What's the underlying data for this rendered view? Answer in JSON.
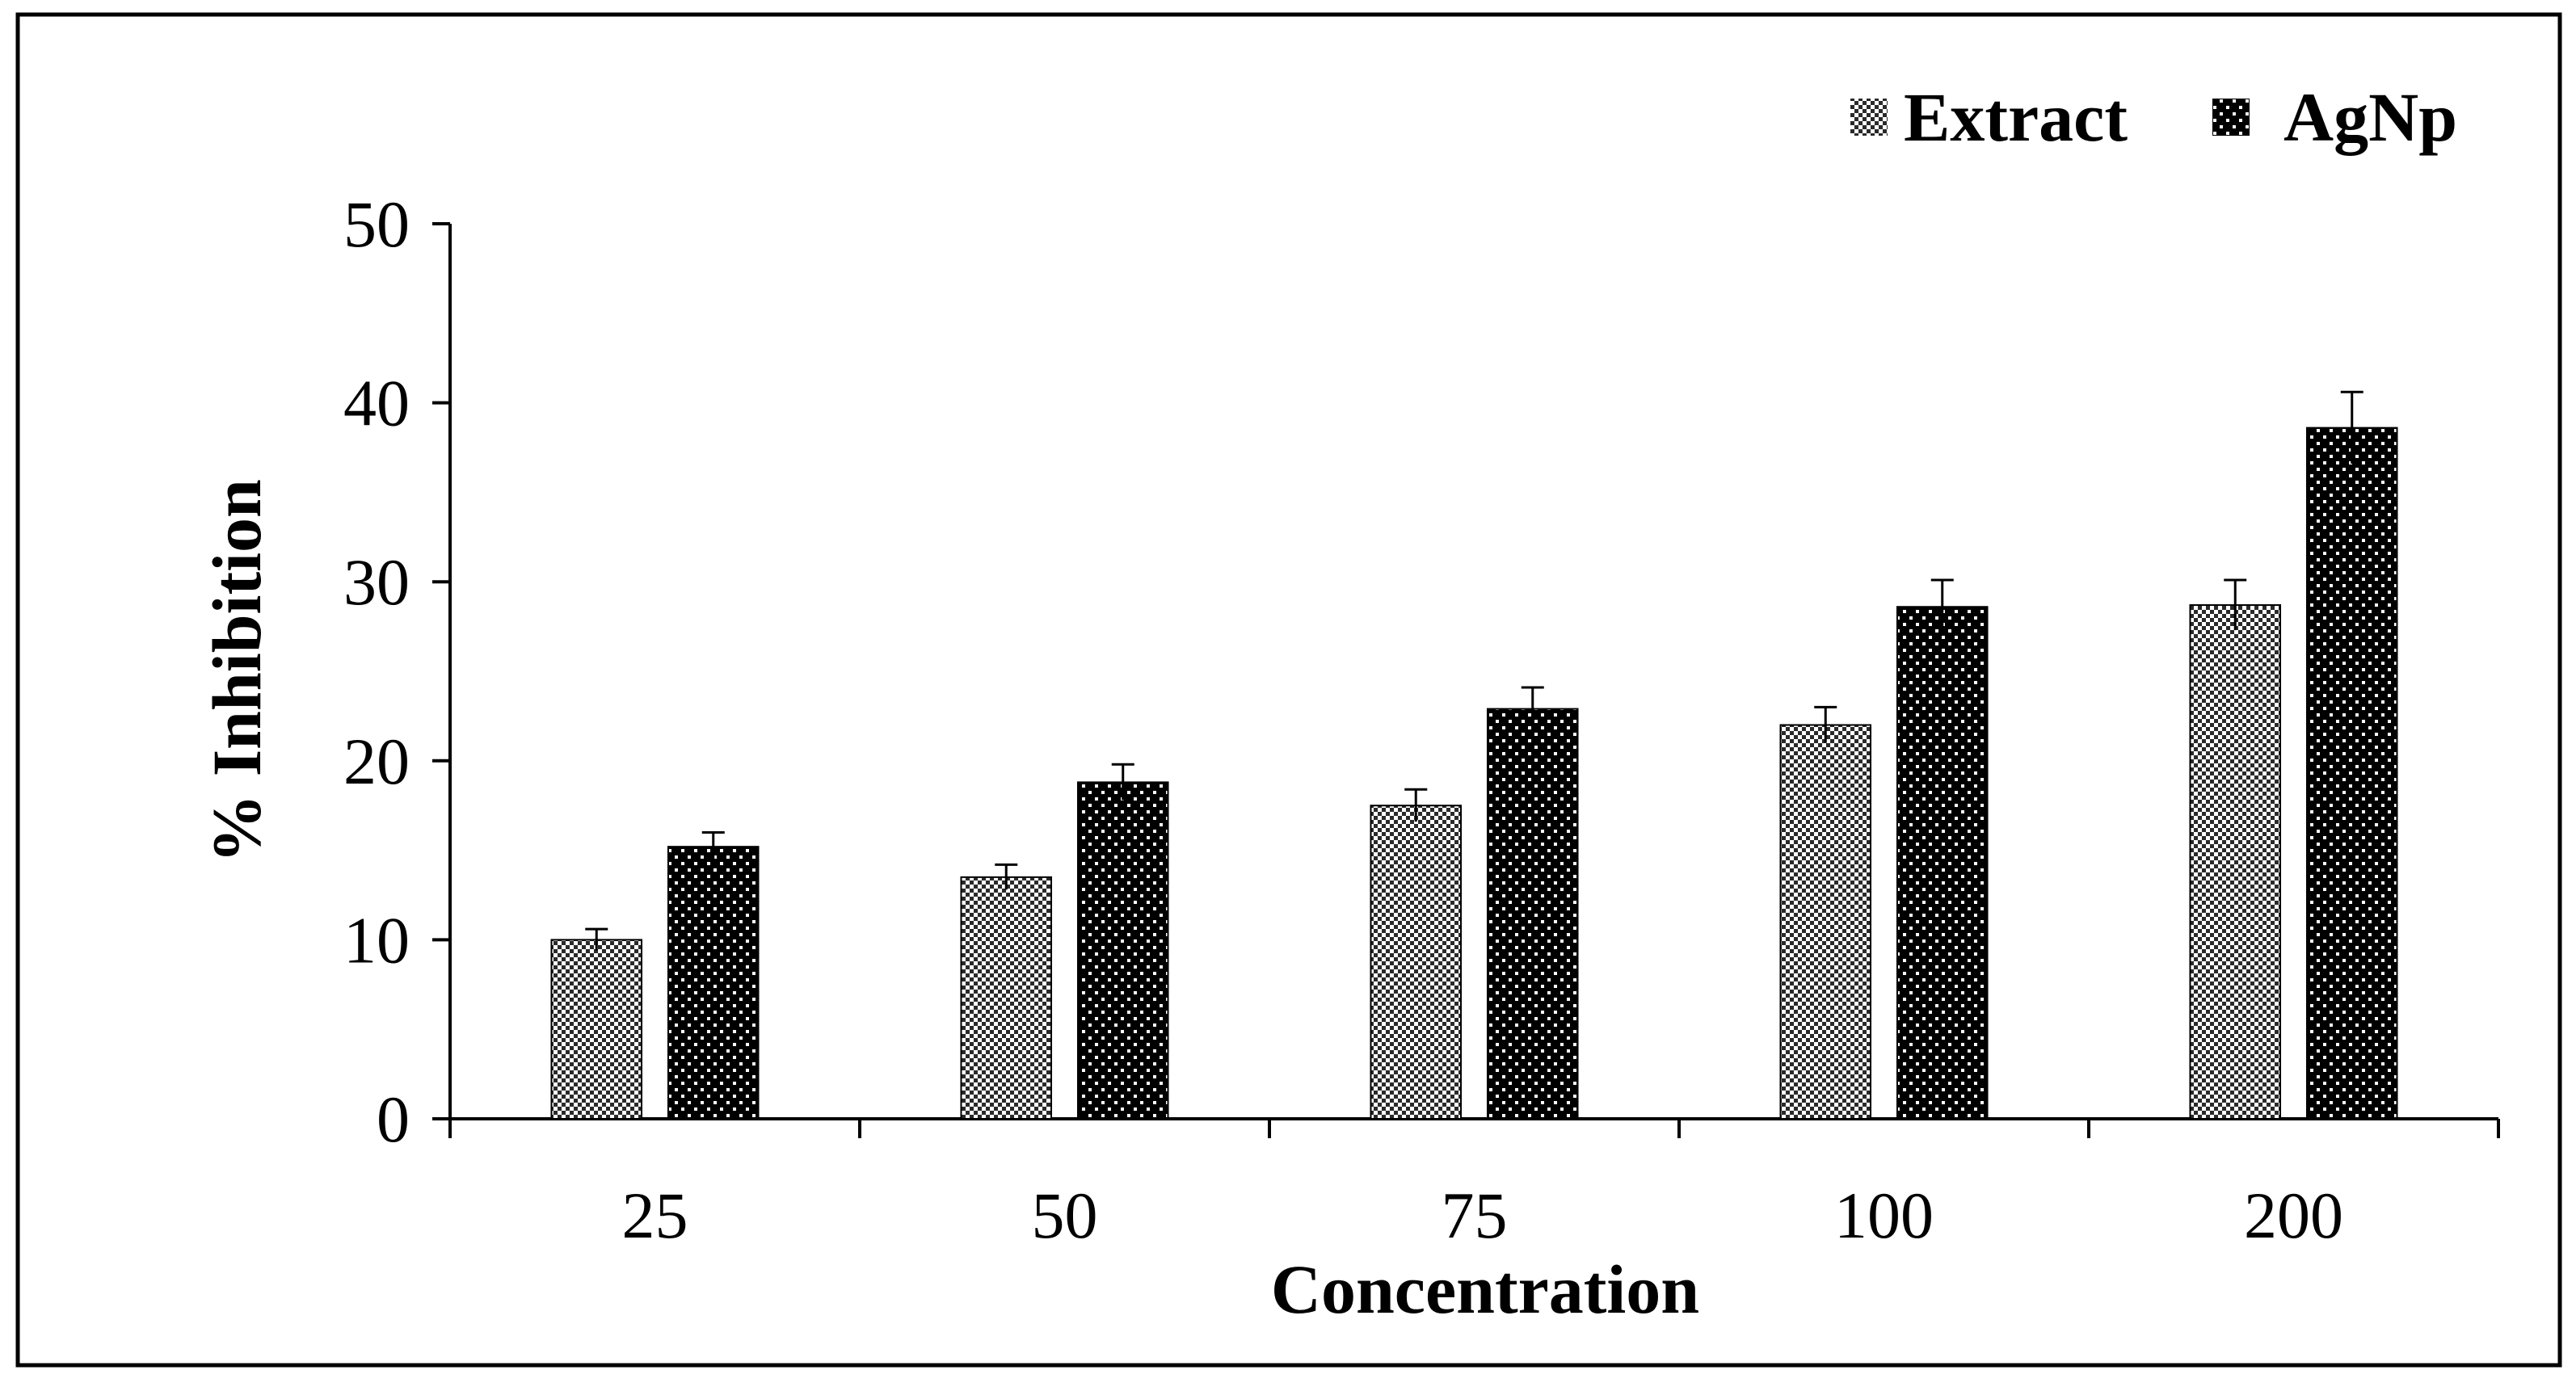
{
  "chart_data": {
    "type": "bar",
    "title": "",
    "xlabel": "Concentration",
    "ylabel": "% Inhibition",
    "categories": [
      "25",
      "50",
      "75",
      "100",
      "200"
    ],
    "series": [
      {
        "name": "Extract",
        "values": [
          10,
          13.5,
          17.5,
          22,
          28.7
        ],
        "errors": [
          0.6,
          0.7,
          0.9,
          1.0,
          1.4
        ],
        "pattern": "checker-light"
      },
      {
        "name": "AgNp",
        "values": [
          15.2,
          18.8,
          22.9,
          28.6,
          38.6
        ],
        "errors": [
          0.8,
          1.0,
          1.2,
          1.5,
          2.0
        ],
        "pattern": "dots-dark"
      }
    ],
    "ylim": [
      0,
      50
    ],
    "yticks": [
      "0",
      "10",
      "20",
      "30",
      "40",
      "50"
    ],
    "grid": false,
    "legend_position": "top-right"
  }
}
